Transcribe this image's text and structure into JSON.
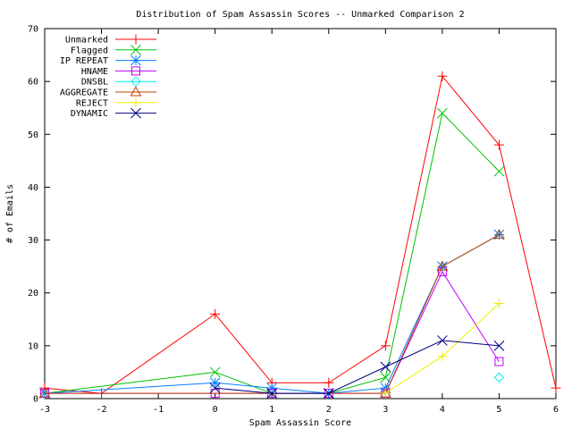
{
  "chart_data": {
    "type": "line",
    "title": "Distribution of Spam Assassin Scores -- Unmarked Comparison 2",
    "xlabel": "Spam Assassin Score",
    "ylabel": "# of Emails",
    "xlim": [
      -3,
      6
    ],
    "ylim": [
      0,
      70
    ],
    "xticks": [
      -3,
      -2,
      -1,
      0,
      1,
      2,
      3,
      4,
      5,
      6
    ],
    "yticks": [
      0,
      10,
      20,
      30,
      40,
      50,
      60,
      70
    ],
    "grid": false,
    "legend_position": "top-left",
    "series": [
      {
        "name": "Unmarked",
        "color": "#ff0000",
        "marker": "plus",
        "x": [
          -3,
          -2,
          0,
          1,
          2,
          3,
          4,
          5,
          6
        ],
        "y": [
          2,
          1,
          16,
          3,
          3,
          10,
          61,
          48,
          2
        ]
      },
      {
        "name": "Flagged",
        "color": "#00c000",
        "marker": "cross",
        "x": [
          -3,
          0,
          1,
          2,
          3,
          4,
          5
        ],
        "y": [
          1,
          5,
          1,
          1,
          4,
          54,
          43
        ]
      },
      {
        "name": "IP REPEAT",
        "color": "#0080ff",
        "marker": "star",
        "x": [
          -3,
          0,
          1,
          2,
          3,
          4,
          5
        ],
        "y": [
          1,
          3,
          2,
          1,
          2,
          25,
          31
        ]
      },
      {
        "name": "HNAME",
        "color": "#c000ff",
        "marker": "square",
        "x": [
          -3,
          0,
          1,
          2,
          3,
          4,
          5
        ],
        "y": [
          1,
          1,
          1,
          1,
          1,
          24,
          7
        ]
      },
      {
        "name": "DNSBL",
        "color": "#00eeee",
        "marker": "diamond",
        "x": [
          5
        ],
        "y": [
          4
        ]
      },
      {
        "name": "AGGREGATE",
        "color": "#c04000",
        "marker": "triangle",
        "x": [
          -3,
          3,
          4,
          5
        ],
        "y": [
          1,
          1,
          25,
          31
        ]
      },
      {
        "name": "REJECT",
        "color": "#eeee00",
        "marker": "plus",
        "x": [
          3,
          4,
          5
        ],
        "y": [
          1,
          8,
          18
        ]
      },
      {
        "name": "DYNAMIC",
        "color": "#000080",
        "marker": "cross",
        "x": [
          0,
          1,
          2,
          3,
          4,
          5
        ],
        "y": [
          2,
          1,
          1,
          6,
          11,
          10
        ]
      }
    ]
  }
}
